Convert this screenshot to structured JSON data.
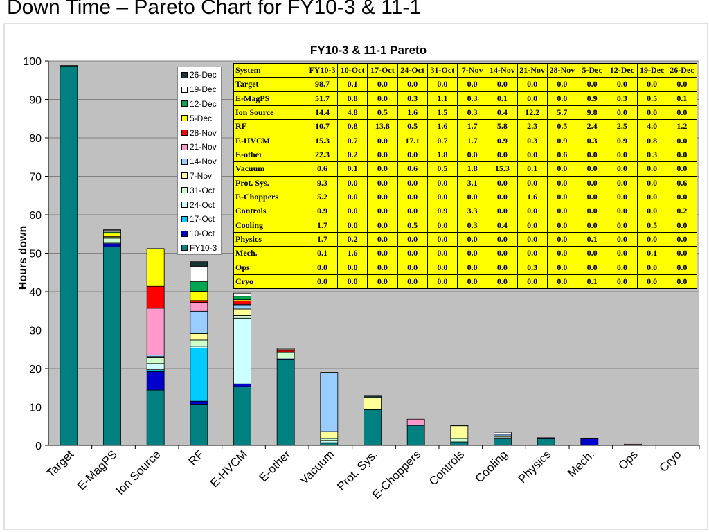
{
  "slide": {
    "title": "Down Time – Pareto Chart for FY10-3 & 11-1"
  },
  "chart_data": {
    "type": "bar",
    "stacked": true,
    "title": "FY10-3 & 11-1 Pareto",
    "xlabel": "",
    "ylabel": "Hours down",
    "ylim": [
      0,
      100
    ],
    "yticks": [
      0,
      10,
      20,
      30,
      40,
      50,
      60,
      70,
      80,
      90,
      100
    ],
    "grid": true,
    "legend_position": "top-center",
    "categories": [
      "Target",
      "E-MagPS",
      "Ion Source",
      "RF",
      "E-HVCM",
      "E-other",
      "Vacuum",
      "Prot. Sys.",
      "E-Choppers",
      "Controls",
      "Cooling",
      "Physics",
      "Mech.",
      "Ops",
      "Cryo"
    ],
    "series": [
      {
        "name": "FY10-3",
        "color": "#008080",
        "values": [
          98.7,
          51.7,
          14.4,
          10.7,
          15.3,
          22.3,
          0.6,
          9.3,
          5.2,
          0.9,
          1.7,
          1.7,
          0.1,
          0.0,
          0.0
        ]
      },
      {
        "name": "10-Oct",
        "color": "#0000cc",
        "values": [
          0.1,
          0.8,
          4.8,
          0.8,
          0.7,
          0.2,
          0.1,
          0.0,
          0.0,
          0.0,
          0.0,
          0.2,
          1.6,
          0.0,
          0.0
        ]
      },
      {
        "name": "17-Oct",
        "color": "#00ccff",
        "values": [
          0.0,
          0.0,
          0.5,
          13.8,
          0.0,
          0.0,
          0.0,
          0.0,
          0.0,
          0.0,
          0.0,
          0.0,
          0.0,
          0.0,
          0.0
        ]
      },
      {
        "name": "24-Oct",
        "color": "#ccffff",
        "values": [
          0.0,
          0.3,
          1.6,
          0.5,
          17.1,
          0.0,
          0.6,
          0.0,
          0.0,
          0.0,
          0.5,
          0.0,
          0.0,
          0.0,
          0.0
        ]
      },
      {
        "name": "31-Oct",
        "color": "#ccffcc",
        "values": [
          0.0,
          1.1,
          1.5,
          1.6,
          0.7,
          1.8,
          0.5,
          0.0,
          0.0,
          0.9,
          0.0,
          0.0,
          0.0,
          0.0,
          0.0
        ]
      },
      {
        "name": "7-Nov",
        "color": "#ffff99",
        "values": [
          0.0,
          0.3,
          0.3,
          1.7,
          1.7,
          0.0,
          1.8,
          3.1,
          0.0,
          3.3,
          0.3,
          0.0,
          0.0,
          0.0,
          0.0
        ]
      },
      {
        "name": "14-Nov",
        "color": "#99ccff",
        "values": [
          0.0,
          0.1,
          0.4,
          5.8,
          0.9,
          0.0,
          15.3,
          0.0,
          0.0,
          0.0,
          0.4,
          0.0,
          0.0,
          0.0,
          0.0
        ]
      },
      {
        "name": "21-Nov",
        "color": "#ff99cc",
        "values": [
          0.0,
          0.0,
          12.2,
          2.3,
          0.3,
          0.0,
          0.1,
          0.0,
          1.6,
          0.0,
          0.0,
          0.0,
          0.0,
          0.3,
          0.0
        ]
      },
      {
        "name": "28-Nov",
        "color": "#ff0000",
        "values": [
          0.0,
          0.0,
          5.7,
          0.5,
          0.9,
          0.6,
          0.0,
          0.0,
          0.0,
          0.0,
          0.0,
          0.0,
          0.0,
          0.0,
          0.0
        ]
      },
      {
        "name": "5-Dec",
        "color": "#ffff00",
        "values": [
          0.0,
          0.9,
          9.8,
          2.4,
          0.3,
          0.0,
          0.0,
          0.0,
          0.0,
          0.0,
          0.0,
          0.1,
          0.0,
          0.0,
          0.1
        ]
      },
      {
        "name": "12-Dec",
        "color": "#00a651",
        "values": [
          0.0,
          0.3,
          0.0,
          2.5,
          0.9,
          0.0,
          0.0,
          0.0,
          0.0,
          0.0,
          0.0,
          0.0,
          0.0,
          0.0,
          0.0
        ]
      },
      {
        "name": "19-Dec",
        "color": "#ffffff",
        "values": [
          0.0,
          0.5,
          0.0,
          4.0,
          0.8,
          0.3,
          0.0,
          0.0,
          0.0,
          0.0,
          0.5,
          0.0,
          0.1,
          0.0,
          0.0
        ]
      },
      {
        "name": "26-Dec",
        "color": "#1a3333",
        "values": [
          0.0,
          0.1,
          0.0,
          1.2,
          0.0,
          0.0,
          0.0,
          0.6,
          0.0,
          0.2,
          0.0,
          0.0,
          0.0,
          0.0,
          0.0
        ]
      }
    ],
    "table": {
      "header": [
        "System",
        "FY10-3",
        "10-Oct",
        "17-Oct",
        "24-Oct",
        "31-Oct",
        "7-Nov",
        "14-Nov",
        "21-Nov",
        "28-Nov",
        "5-Dec",
        "12-Dec",
        "19-Dec",
        "26-Dec"
      ],
      "rows": [
        [
          "Target",
          "98.7",
          "0.1",
          "0.0",
          "0.0",
          "0.0",
          "0.0",
          "0.0",
          "0.0",
          "0.0",
          "0.0",
          "0.0",
          "0.0",
          "0.0"
        ],
        [
          "E-MagPS",
          "51.7",
          "0.8",
          "0.0",
          "0.3",
          "1.1",
          "0.3",
          "0.1",
          "0.0",
          "0.0",
          "0.9",
          "0.3",
          "0.5",
          "0.1"
        ],
        [
          "Ion Source",
          "14.4",
          "4.8",
          "0.5",
          "1.6",
          "1.5",
          "0.3",
          "0.4",
          "12.2",
          "5.7",
          "9.8",
          "0.0",
          "0.0",
          "0.0"
        ],
        [
          "RF",
          "10.7",
          "0.8",
          "13.8",
          "0.5",
          "1.6",
          "1.7",
          "5.8",
          "2.3",
          "0.5",
          "2.4",
          "2.5",
          "4.0",
          "1.2"
        ],
        [
          "E-HVCM",
          "15.3",
          "0.7",
          "0.0",
          "17.1",
          "0.7",
          "1.7",
          "0.9",
          "0.3",
          "0.9",
          "0.3",
          "0.9",
          "0.8",
          "0.0"
        ],
        [
          "E-other",
          "22.3",
          "0.2",
          "0.0",
          "0.0",
          "1.8",
          "0.0",
          "0.0",
          "0.0",
          "0.6",
          "0.0",
          "0.0",
          "0.3",
          "0.0"
        ],
        [
          "Vacuum",
          "0.6",
          "0.1",
          "0.0",
          "0.6",
          "0.5",
          "1.8",
          "15.3",
          "0.1",
          "0.0",
          "0.0",
          "0.0",
          "0.0",
          "0.0"
        ],
        [
          "Prot. Sys.",
          "9.3",
          "0.0",
          "0.0",
          "0.0",
          "0.0",
          "3.1",
          "0.0",
          "0.0",
          "0.0",
          "0.0",
          "0.0",
          "0.0",
          "0.6"
        ],
        [
          "E-Choppers",
          "5.2",
          "0.0",
          "0.0",
          "0.0",
          "0.0",
          "0.0",
          "0.0",
          "1.6",
          "0.0",
          "0.0",
          "0.0",
          "0.0",
          "0.0"
        ],
        [
          "Controls",
          "0.9",
          "0.0",
          "0.0",
          "0.0",
          "0.9",
          "3.3",
          "0.0",
          "0.0",
          "0.0",
          "0.0",
          "0.0",
          "0.0",
          "0.2"
        ],
        [
          "Cooling",
          "1.7",
          "0.0",
          "0.0",
          "0.5",
          "0.0",
          "0.3",
          "0.4",
          "0.0",
          "0.0",
          "0.0",
          "0.0",
          "0.5",
          "0.0"
        ],
        [
          "Physics",
          "1.7",
          "0.2",
          "0.0",
          "0.0",
          "0.0",
          "0.0",
          "0.0",
          "0.0",
          "0.0",
          "0.1",
          "0.0",
          "0.0",
          "0.0"
        ],
        [
          "Mech.",
          "0.1",
          "1.6",
          "0.0",
          "0.0",
          "0.0",
          "0.0",
          "0.0",
          "0.0",
          "0.0",
          "0.0",
          "0.0",
          "0.1",
          "0.0"
        ],
        [
          "Ops",
          "0.0",
          "0.0",
          "0.0",
          "0.0",
          "0.0",
          "0.0",
          "0.0",
          "0.3",
          "0.0",
          "0.0",
          "0.0",
          "0.0",
          "0.0"
        ],
        [
          "Cryo",
          "0.0",
          "0.0",
          "0.0",
          "0.0",
          "0.0",
          "0.0",
          "0.0",
          "0.0",
          "0.0",
          "0.1",
          "0.0",
          "0.0",
          "0.0"
        ]
      ]
    }
  }
}
